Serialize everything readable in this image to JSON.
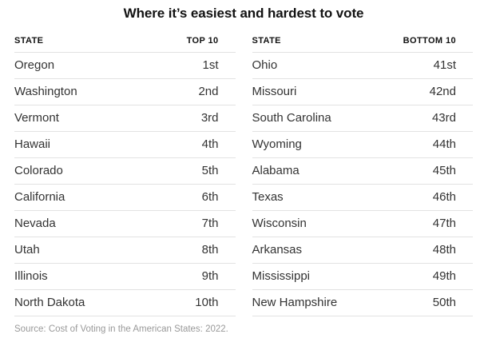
{
  "chart_data": {
    "type": "table",
    "title": "Where it’s easiest and hardest to vote",
    "source": "Source: Cost of Voting in the American States: 2022.",
    "tables": [
      {
        "headers": {
          "state": "STATE",
          "rank": "TOP 10"
        },
        "rows": [
          {
            "state": "Oregon",
            "rank": "1st"
          },
          {
            "state": "Washington",
            "rank": "2nd"
          },
          {
            "state": "Vermont",
            "rank": "3rd"
          },
          {
            "state": "Hawaii",
            "rank": "4th"
          },
          {
            "state": "Colorado",
            "rank": "5th"
          },
          {
            "state": "California",
            "rank": "6th"
          },
          {
            "state": "Nevada",
            "rank": "7th"
          },
          {
            "state": "Utah",
            "rank": "8th"
          },
          {
            "state": "Illinois",
            "rank": "9th"
          },
          {
            "state": "North Dakota",
            "rank": "10th"
          }
        ]
      },
      {
        "headers": {
          "state": "STATE",
          "rank": "BOTTOM 10"
        },
        "rows": [
          {
            "state": "Ohio",
            "rank": "41st"
          },
          {
            "state": "Missouri",
            "rank": "42nd"
          },
          {
            "state": "South Carolina",
            "rank": "43rd"
          },
          {
            "state": "Wyoming",
            "rank": "44th"
          },
          {
            "state": "Alabama",
            "rank": "45th"
          },
          {
            "state": "Texas",
            "rank": "46th"
          },
          {
            "state": "Wisconsin",
            "rank": "47th"
          },
          {
            "state": "Arkansas",
            "rank": "48th"
          },
          {
            "state": "Mississippi",
            "rank": "49th"
          },
          {
            "state": "New Hampshire",
            "rank": "50th"
          }
        ]
      }
    ]
  },
  "colors": {
    "title_text": "#121212",
    "header_text": "#121212",
    "body_text": "#333333",
    "divider": "#e2e2e2",
    "source_text": "#999999",
    "background": "#ffffff"
  }
}
